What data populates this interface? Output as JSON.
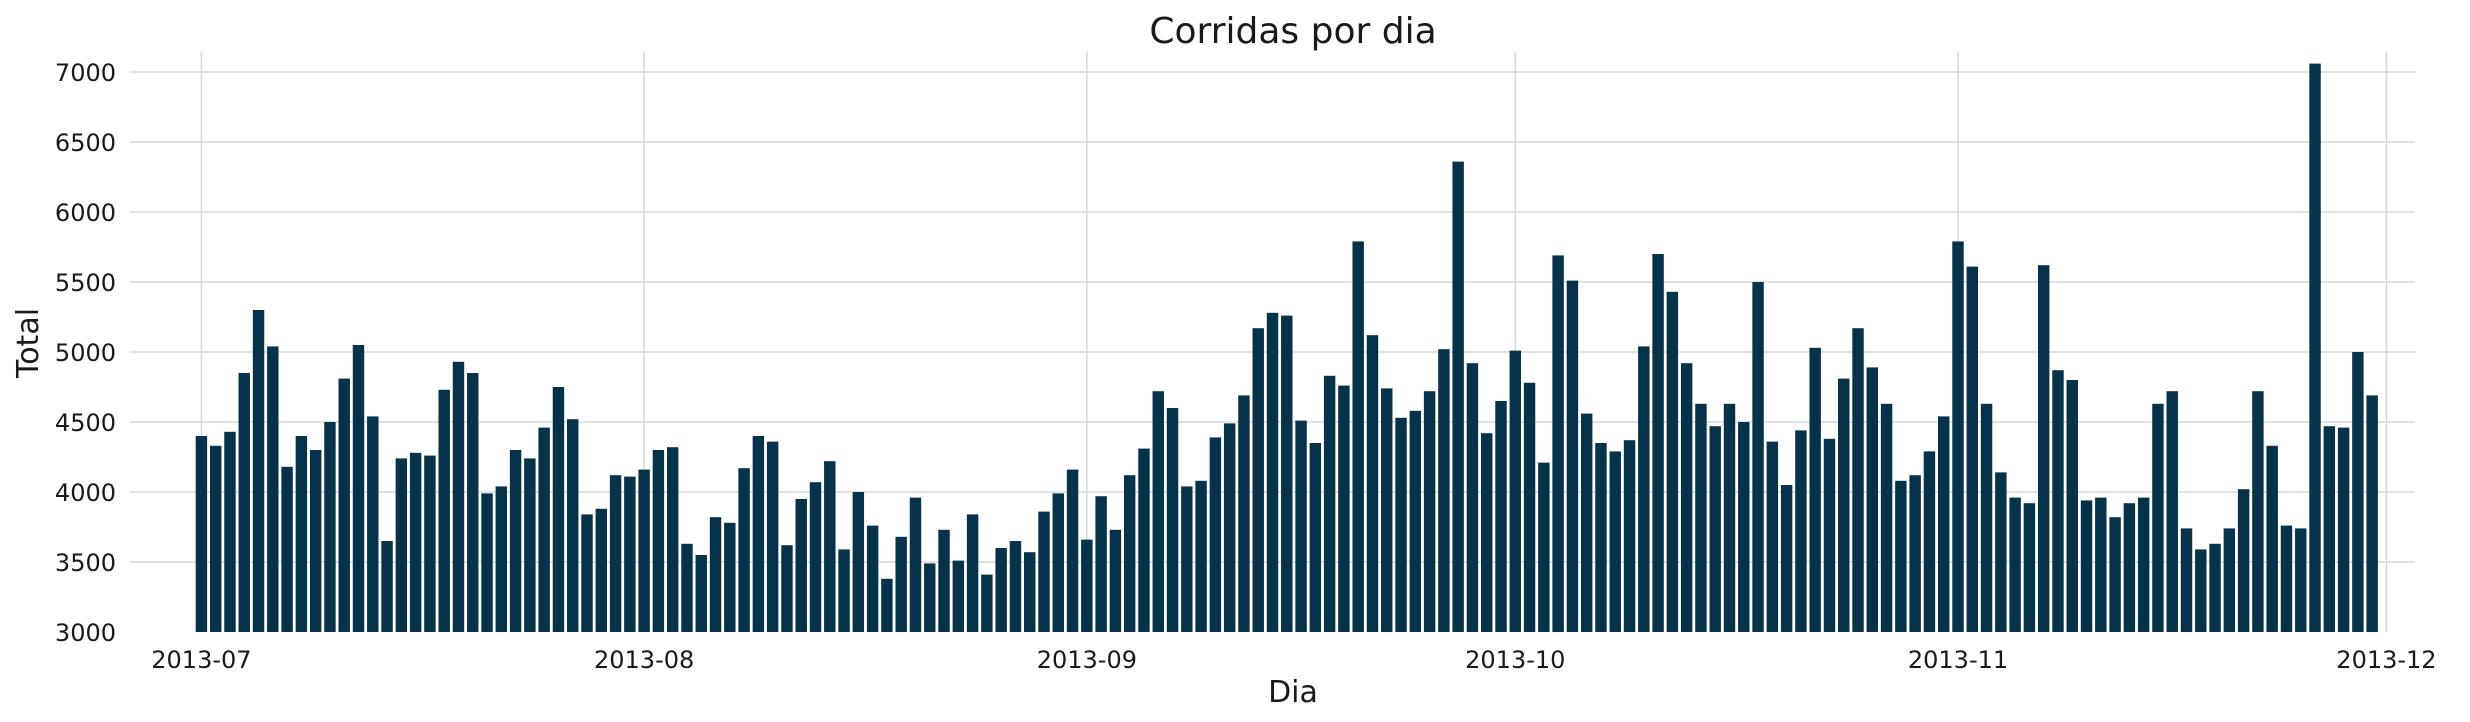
{
  "chart_data": {
    "type": "bar",
    "title": "Corridas por dia",
    "xlabel": "Dia",
    "ylabel": "Total",
    "ylim": [
      3000,
      7100
    ],
    "yticks": [
      3000,
      3500,
      4000,
      4500,
      5000,
      5500,
      6000,
      6500,
      7000
    ],
    "xlim": [
      "2013-06-26",
      "2013-12-03"
    ],
    "xticks": [
      {
        "date": "2013-07-01",
        "label": "2013-07"
      },
      {
        "date": "2013-08-01",
        "label": "2013-08"
      },
      {
        "date": "2013-09-01",
        "label": "2013-09"
      },
      {
        "date": "2013-10-01",
        "label": "2013-10"
      },
      {
        "date": "2013-11-01",
        "label": "2013-11"
      },
      {
        "date": "2013-12-01",
        "label": "2013-12"
      }
    ],
    "grid": true,
    "bar_color": "#06324a",
    "start_date": "2013-07-01",
    "values": [
      4400,
      4330,
      4430,
      4850,
      5300,
      5040,
      4180,
      4400,
      4300,
      4500,
      4810,
      5050,
      4540,
      3650,
      4240,
      4280,
      4260,
      4730,
      4930,
      4850,
      3990,
      4040,
      4300,
      4240,
      4460,
      4750,
      4520,
      3840,
      3880,
      4120,
      4110,
      4160,
      4300,
      4320,
      3630,
      3550,
      3820,
      3780,
      4170,
      4400,
      4360,
      3620,
      3950,
      4070,
      4220,
      3590,
      4000,
      3760,
      3380,
      3680,
      3960,
      3490,
      3730,
      3510,
      3840,
      3410,
      3600,
      3650,
      3570,
      3860,
      3990,
      4160,
      3660,
      3970,
      3730,
      4120,
      4310,
      4720,
      4600,
      4040,
      4080,
      4390,
      4490,
      4690,
      5170,
      5280,
      5260,
      4510,
      4350,
      4830,
      4760,
      5790,
      5120,
      4740,
      4530,
      4580,
      4720,
      5020,
      6360,
      4920,
      4420,
      4650,
      5010,
      4780,
      4210,
      5690,
      5510,
      4560,
      4350,
      4290,
      4370,
      5040,
      5700,
      5430,
      4920,
      4630,
      4470,
      4630,
      4500,
      5500,
      4360,
      4050,
      4440,
      5030,
      4380,
      4810,
      5170,
      4890,
      4630,
      4080,
      4120,
      4290,
      4540,
      5790,
      5610,
      4630,
      4140,
      3960,
      3920,
      5620,
      4870,
      4800,
      3940,
      3960,
      3820,
      3920,
      3960,
      4630,
      4720,
      3740,
      3590,
      3630,
      3740,
      4020,
      4720,
      4330,
      3760,
      3740,
      7060,
      4470,
      4460,
      5000,
      4690
    ]
  }
}
